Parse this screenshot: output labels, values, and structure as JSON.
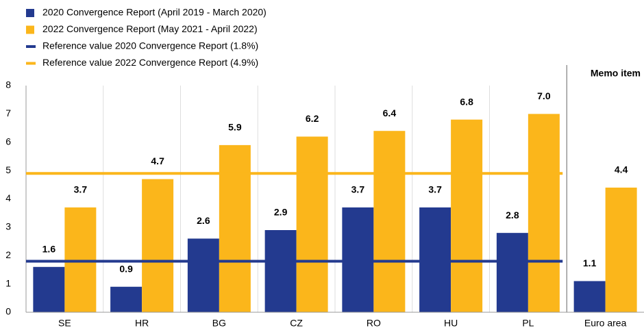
{
  "chart_data": {
    "type": "bar",
    "categories": [
      "SE",
      "HR",
      "BG",
      "CZ",
      "RO",
      "HU",
      "PL",
      "Euro area"
    ],
    "series": [
      {
        "name": "2020 Convergence Report (April 2019 - March 2020)",
        "color": "#233a8f",
        "values": [
          1.6,
          0.9,
          2.6,
          2.9,
          3.7,
          3.7,
          2.8,
          1.1
        ]
      },
      {
        "name": "2022 Convergence Report (May 2021 - April 2022)",
        "color": "#fbb61b",
        "values": [
          3.7,
          4.7,
          5.9,
          6.2,
          6.4,
          6.8,
          7.0,
          4.4
        ],
        "value_labels": [
          "3.7",
          "4.7",
          "5.9",
          "6.2",
          "6.4",
          "6.8",
          "7.0",
          "4.4"
        ]
      }
    ],
    "reference_lines": [
      {
        "name": "Reference value 2020 Convergence Report (1.8%)",
        "color": "#233a8f",
        "value": 1.8
      },
      {
        "name": "Reference value 2022 Convergence Report (4.9%)",
        "color": "#fbb61b",
        "value": 4.9
      }
    ],
    "memo_label": "Memo item",
    "ylim": [
      0,
      8
    ],
    "yticks": [
      0,
      1,
      2,
      3,
      4,
      5,
      6,
      7,
      8
    ],
    "grid": true
  }
}
